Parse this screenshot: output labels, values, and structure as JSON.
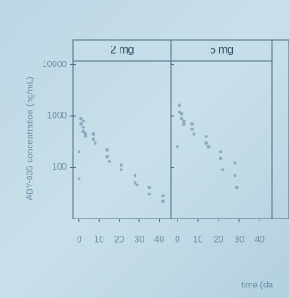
{
  "chart_data": [
    {
      "type": "scatter",
      "title": "2 mg",
      "y_label": "ABY-035 concentration (ng/mL)",
      "log_y": true,
      "color": "#7f9db3",
      "xlim": [
        -3,
        46
      ],
      "xticks": [
        0,
        10,
        20,
        30,
        40
      ],
      "ylim": [
        10,
        12000
      ],
      "yticks": [
        100,
        1000,
        10000
      ],
      "series": [
        {
          "name": "2 mg",
          "color": "#7f9db3",
          "x": [
            1,
            1,
            2,
            2,
            2,
            3,
            3,
            0,
            0,
            7,
            7,
            8,
            14,
            14,
            15,
            21,
            21,
            28,
            28,
            29,
            35,
            35,
            42,
            42
          ],
          "values": [
            900,
            700,
            800,
            600,
            500,
            450,
            400,
            200,
            60,
            450,
            350,
            300,
            220,
            160,
            130,
            110,
            90,
            70,
            50,
            45,
            40,
            30,
            28,
            22
          ]
        }
      ]
    },
    {
      "type": "scatter",
      "title": "5 mg",
      "x_label": "time (da",
      "log_y": true,
      "color": "#7f9db3",
      "xlim": [
        -3,
        46
      ],
      "xticks": [
        0,
        10,
        20,
        30,
        40
      ],
      "ylim": [
        10,
        12000
      ],
      "yticks": [
        100,
        1000,
        10000
      ],
      "series": [
        {
          "name": "5 mg",
          "color": "#7f9db3",
          "x": [
            1,
            1,
            2,
            2,
            3,
            3,
            0,
            7,
            7,
            8,
            14,
            14,
            15,
            21,
            21,
            22,
            28,
            28,
            29
          ],
          "values": [
            1600,
            1200,
            1100,
            900,
            800,
            700,
            250,
            700,
            550,
            450,
            400,
            300,
            250,
            200,
            150,
            90,
            120,
            70,
            40
          ]
        }
      ]
    }
  ]
}
